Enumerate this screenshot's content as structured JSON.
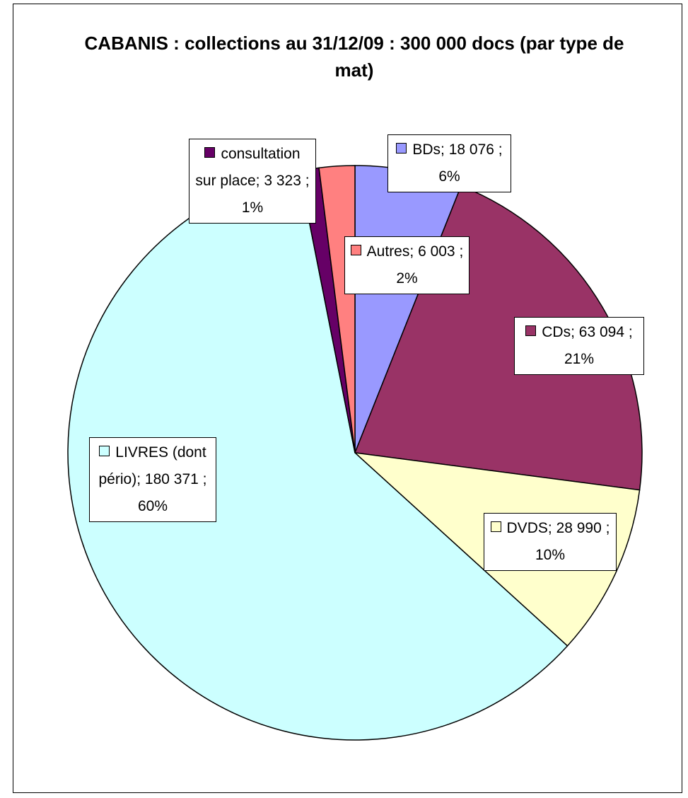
{
  "chart_data": {
    "type": "pie",
    "title": "CABANIS : collections au 31/12/09 : 300 000 docs (par type de mat)",
    "categories": [
      "BDs",
      "CDs",
      "DVDS",
      "LIVRES (dont pério)",
      "consultation sur place",
      "Autres"
    ],
    "values": [
      18076,
      63094,
      28990,
      180371,
      3323,
      6003
    ],
    "value_labels": [
      "18 076",
      "63 094",
      "28 990",
      "180 371",
      "3 323",
      "6 003"
    ],
    "percent_labels": [
      "6%",
      "21%",
      "10%",
      "60%",
      "1%",
      "2%"
    ],
    "separator": ";",
    "colors": [
      "#9999ff",
      "#993366",
      "#ffffcc",
      "#ccffff",
      "#660066",
      "#ff8080"
    ]
  }
}
